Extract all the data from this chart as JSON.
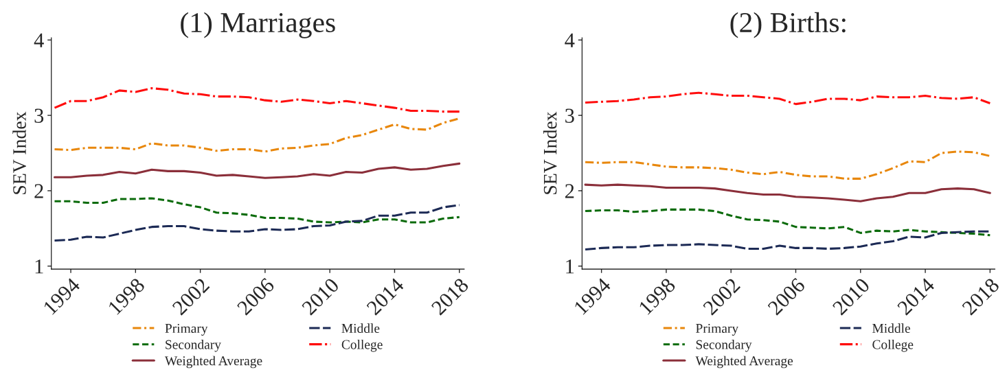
{
  "chart_data": [
    {
      "type": "line",
      "title": "(1) Marriages",
      "ylabel": "SEV Index",
      "x": [
        1993,
        1994,
        1995,
        1996,
        1997,
        1998,
        1999,
        2000,
        2001,
        2002,
        2003,
        2004,
        2005,
        2006,
        2007,
        2008,
        2009,
        2010,
        2011,
        2012,
        2013,
        2014,
        2015,
        2016,
        2017,
        2018
      ],
      "xlim": [
        1992.8,
        2018.3
      ],
      "xticks": [
        1994,
        1998,
        2002,
        2006,
        2010,
        2014,
        2018
      ],
      "ylim": [
        0.96,
        4.03
      ],
      "yticks": [
        1,
        2,
        3,
        4
      ],
      "grid": false,
      "legend": "bottom",
      "series": [
        {
          "name": "Primary",
          "color": "#e8870c",
          "line_style": "dashdot",
          "values": [
            2.55,
            2.54,
            2.57,
            2.57,
            2.57,
            2.55,
            2.63,
            2.6,
            2.6,
            2.57,
            2.53,
            2.55,
            2.55,
            2.52,
            2.56,
            2.57,
            2.6,
            2.62,
            2.7,
            2.74,
            2.81,
            2.88,
            2.82,
            2.81,
            2.9,
            2.96
          ]
        },
        {
          "name": "Secondary",
          "color": "#0b6b0b",
          "line_style": "dashed",
          "values": [
            1.86,
            1.86,
            1.84,
            1.84,
            1.89,
            1.89,
            1.9,
            1.87,
            1.82,
            1.78,
            1.71,
            1.7,
            1.68,
            1.64,
            1.64,
            1.63,
            1.59,
            1.58,
            1.59,
            1.58,
            1.62,
            1.62,
            1.58,
            1.58,
            1.63,
            1.65
          ]
        },
        {
          "name": "Weighted Average",
          "color": "#8b2f3a",
          "line_style": "solid",
          "values": [
            2.18,
            2.18,
            2.2,
            2.21,
            2.25,
            2.23,
            2.28,
            2.26,
            2.26,
            2.24,
            2.2,
            2.21,
            2.19,
            2.17,
            2.18,
            2.19,
            2.22,
            2.2,
            2.25,
            2.24,
            2.29,
            2.31,
            2.28,
            2.29,
            2.33,
            2.36
          ]
        },
        {
          "name": "Middle",
          "color": "#1c2a55",
          "line_style": "longdashed",
          "values": [
            1.34,
            1.35,
            1.39,
            1.38,
            1.43,
            1.48,
            1.52,
            1.53,
            1.53,
            1.49,
            1.47,
            1.46,
            1.46,
            1.49,
            1.48,
            1.49,
            1.53,
            1.54,
            1.59,
            1.6,
            1.67,
            1.67,
            1.71,
            1.71,
            1.78,
            1.81
          ]
        },
        {
          "name": "College",
          "color": "#ff0d0d",
          "line_style": "longdashdot",
          "values": [
            3.1,
            3.19,
            3.19,
            3.24,
            3.33,
            3.31,
            3.36,
            3.34,
            3.29,
            3.28,
            3.25,
            3.25,
            3.24,
            3.2,
            3.18,
            3.21,
            3.19,
            3.16,
            3.19,
            3.16,
            3.13,
            3.1,
            3.06,
            3.06,
            3.05,
            3.05
          ]
        }
      ]
    },
    {
      "type": "line",
      "title": "(2) Births:",
      "ylabel": "SEV Index",
      "x": [
        1993,
        1994,
        1995,
        1996,
        1997,
        1998,
        1999,
        2000,
        2001,
        2002,
        2003,
        2004,
        2005,
        2006,
        2007,
        2008,
        2009,
        2010,
        2011,
        2012,
        2013,
        2014,
        2015,
        2016,
        2017,
        2018
      ],
      "xlim": [
        1992.8,
        2018.3
      ],
      "xticks": [
        1994,
        1998,
        2002,
        2006,
        2010,
        2014,
        2018
      ],
      "ylim": [
        0.96,
        4.03
      ],
      "yticks": [
        1,
        2,
        3,
        4
      ],
      "grid": false,
      "legend": "bottom",
      "series": [
        {
          "name": "Primary",
          "color": "#e8870c",
          "line_style": "dashdot",
          "values": [
            2.38,
            2.37,
            2.38,
            2.38,
            2.35,
            2.32,
            2.31,
            2.31,
            2.3,
            2.28,
            2.24,
            2.22,
            2.25,
            2.21,
            2.19,
            2.19,
            2.16,
            2.16,
            2.22,
            2.3,
            2.39,
            2.38,
            2.5,
            2.52,
            2.51,
            2.46
          ]
        },
        {
          "name": "Secondary",
          "color": "#0b6b0b",
          "line_style": "dashed",
          "values": [
            1.73,
            1.74,
            1.74,
            1.72,
            1.73,
            1.75,
            1.75,
            1.75,
            1.73,
            1.67,
            1.62,
            1.61,
            1.59,
            1.52,
            1.51,
            1.5,
            1.52,
            1.44,
            1.47,
            1.46,
            1.48,
            1.46,
            1.45,
            1.44,
            1.43,
            1.41
          ]
        },
        {
          "name": "Weighted Average",
          "color": "#8b2f3a",
          "line_style": "solid",
          "values": [
            2.08,
            2.07,
            2.08,
            2.07,
            2.06,
            2.04,
            2.04,
            2.04,
            2.03,
            2.0,
            1.97,
            1.95,
            1.95,
            1.92,
            1.91,
            1.9,
            1.88,
            1.86,
            1.9,
            1.92,
            1.97,
            1.97,
            2.02,
            2.03,
            2.02,
            1.97
          ]
        },
        {
          "name": "Middle",
          "color": "#1c2a55",
          "line_style": "longdashed",
          "values": [
            1.22,
            1.24,
            1.25,
            1.25,
            1.27,
            1.28,
            1.28,
            1.29,
            1.28,
            1.27,
            1.23,
            1.23,
            1.27,
            1.24,
            1.24,
            1.23,
            1.24,
            1.26,
            1.3,
            1.33,
            1.39,
            1.38,
            1.44,
            1.45,
            1.46,
            1.46
          ]
        },
        {
          "name": "College",
          "color": "#ff0d0d",
          "line_style": "longdashdot",
          "values": [
            3.17,
            3.18,
            3.19,
            3.21,
            3.24,
            3.25,
            3.28,
            3.3,
            3.28,
            3.26,
            3.26,
            3.24,
            3.22,
            3.15,
            3.18,
            3.22,
            3.22,
            3.2,
            3.25,
            3.24,
            3.24,
            3.26,
            3.23,
            3.22,
            3.24,
            3.16
          ]
        }
      ]
    }
  ]
}
